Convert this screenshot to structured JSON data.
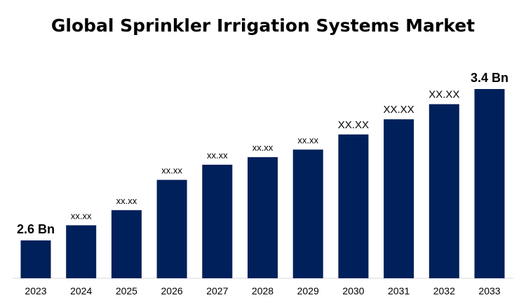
{
  "chart_data": {
    "type": "bar",
    "title": "Global Sprinkler Irrigation Systems Market",
    "xlabel": "",
    "ylabel": "",
    "categories": [
      "2023",
      "2024",
      "2025",
      "2026",
      "2027",
      "2028",
      "2029",
      "2030",
      "2031",
      "2032",
      "2033"
    ],
    "values": [
      2.6,
      2.68,
      2.76,
      2.92,
      3.0,
      3.04,
      3.08,
      3.16,
      3.24,
      3.32,
      3.4
    ],
    "data_labels": [
      "2.6 Bn",
      "xx.xx",
      "xx.xx",
      "xx.xx",
      "xx.xx",
      "xx.xx",
      "xx.xx",
      "XX.XX",
      "XX.XX",
      "XX.XX",
      "3.4 Bn"
    ],
    "label_styles": [
      "bold",
      "small",
      "small",
      "small",
      "small",
      "small",
      "small",
      "medium",
      "medium",
      "medium",
      "bold"
    ],
    "unit": "Bn",
    "ylim": [
      2.4,
      3.4
    ],
    "grid": false,
    "legend": "none",
    "colors": {
      "bar": "#00205b",
      "axis": "#d9d9d9"
    }
  }
}
